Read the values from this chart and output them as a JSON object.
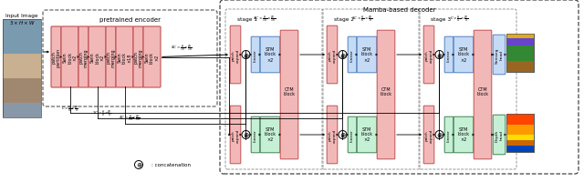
{
  "bg_color": "#ffffff",
  "red_color": "#f2b8b8",
  "blue_color": "#c5daf5",
  "green_color": "#c5f0d5",
  "red_edge": "#c05050",
  "blue_edge": "#5080c0",
  "green_edge": "#408050",
  "dark_edge": "#555555",
  "stages": [
    "stage 1",
    "stage 2",
    "stage 3"
  ],
  "stage_dims": [
    "4C \\times \\frac{H}{16} \\times \\frac{W}{16}",
    "2C \\times \\frac{H}{8} \\times \\frac{W}{8}",
    "C \\times \\frac{H}{4} \\times \\frac{W}{4}"
  ],
  "enc_dims": [
    "C = \\frac{H}{4} \\times \\frac{W}{4}",
    "2C = \\frac{H}{8} \\times \\frac{W}{8}",
    "4C = \\frac{H}{16} \\times \\frac{W}{16}"
  ],
  "enc_last_dim": "4C = \\frac{H}{16} \\times \\frac{W}{16}"
}
